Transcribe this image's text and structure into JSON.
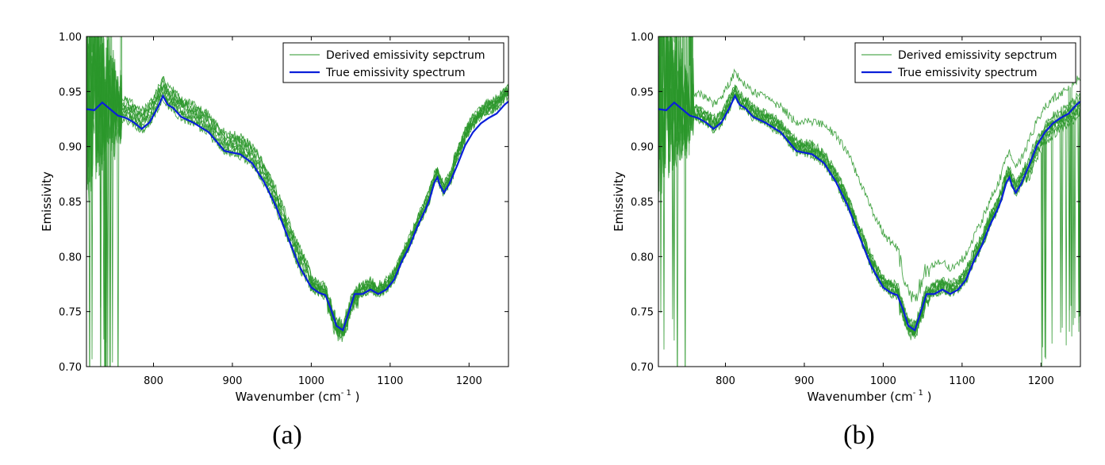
{
  "panels": [
    {
      "sublabel": "(a)"
    },
    {
      "sublabel": "(b)"
    }
  ],
  "chart_data": [
    {
      "type": "line",
      "xlabel": "Wavenumber (cm",
      "xlabel_sup": "- 1",
      "xlabel_suffix": " )",
      "ylabel": "Emissivity",
      "xlim": [
        715,
        1250
      ],
      "ylim": [
        0.7,
        1.0
      ],
      "xticks": [
        800,
        900,
        1000,
        1100,
        1200
      ],
      "yticks": [
        0.7,
        0.75,
        0.8,
        0.85,
        0.9,
        0.95,
        1.0
      ],
      "ytick_labels": [
        "0.70",
        "0.75",
        "0.80",
        "0.85",
        "0.90",
        "0.95",
        "1.00"
      ],
      "grid": false,
      "legend_position": "top-right",
      "series": [
        {
          "name": "Derived emissivity sepctrum",
          "color": "#2a962a",
          "role": "derived",
          "ensemble_count": 10,
          "offset_shape": "tail"
        },
        {
          "name": "True emissivity spectrum",
          "color": "#0a1fd9",
          "role": "true",
          "x": [
            715,
            725,
            735,
            745,
            755,
            765,
            775,
            785,
            795,
            805,
            812,
            818,
            825,
            835,
            850,
            870,
            890,
            910,
            925,
            940,
            955,
            970,
            985,
            1000,
            1010,
            1018,
            1025,
            1032,
            1040,
            1047,
            1055,
            1065,
            1075,
            1085,
            1095,
            1105,
            1115,
            1125,
            1135,
            1145,
            1150,
            1156,
            1160,
            1163,
            1168,
            1175,
            1185,
            1195,
            1205,
            1215,
            1225,
            1235,
            1245,
            1250
          ],
          "y": [
            0.934,
            0.933,
            0.94,
            0.934,
            0.928,
            0.926,
            0.922,
            0.916,
            0.922,
            0.935,
            0.946,
            0.938,
            0.935,
            0.927,
            0.922,
            0.913,
            0.896,
            0.893,
            0.885,
            0.868,
            0.846,
            0.818,
            0.791,
            0.772,
            0.767,
            0.765,
            0.752,
            0.737,
            0.733,
            0.748,
            0.766,
            0.766,
            0.77,
            0.766,
            0.77,
            0.779,
            0.796,
            0.81,
            0.828,
            0.843,
            0.852,
            0.867,
            0.872,
            0.865,
            0.858,
            0.866,
            0.883,
            0.901,
            0.913,
            0.921,
            0.926,
            0.93,
            0.938,
            0.941
          ]
        }
      ]
    },
    {
      "type": "line",
      "xlabel": "Wavenumber (cm",
      "xlabel_sup": "- 1",
      "xlabel_suffix": " )",
      "ylabel": "Emissivity",
      "xlim": [
        715,
        1250
      ],
      "ylim": [
        0.7,
        1.0
      ],
      "xticks": [
        800,
        900,
        1000,
        1100,
        1200
      ],
      "yticks": [
        0.7,
        0.75,
        0.8,
        0.85,
        0.9,
        0.95,
        1.0
      ],
      "ytick_labels": [
        "0.70",
        "0.75",
        "0.80",
        "0.85",
        "0.90",
        "0.95",
        "1.00"
      ],
      "grid": false,
      "legend_position": "top-right",
      "series": [
        {
          "name": "Derived emissivity sepctrum",
          "color": "#2a962a",
          "role": "derived",
          "ensemble_count": 10,
          "offset_shape": "bump"
        },
        {
          "name": "True emissivity spectrum",
          "color": "#0a1fd9",
          "role": "true",
          "x": [
            715,
            725,
            735,
            745,
            755,
            765,
            775,
            785,
            795,
            805,
            812,
            818,
            825,
            835,
            850,
            870,
            890,
            910,
            925,
            940,
            955,
            970,
            985,
            1000,
            1010,
            1018,
            1025,
            1032,
            1040,
            1047,
            1055,
            1065,
            1075,
            1085,
            1095,
            1105,
            1115,
            1125,
            1135,
            1145,
            1150,
            1156,
            1160,
            1163,
            1168,
            1175,
            1185,
            1195,
            1205,
            1215,
            1225,
            1235,
            1245,
            1250
          ],
          "y": [
            0.934,
            0.933,
            0.94,
            0.934,
            0.928,
            0.926,
            0.922,
            0.916,
            0.922,
            0.935,
            0.946,
            0.938,
            0.935,
            0.927,
            0.922,
            0.913,
            0.896,
            0.893,
            0.885,
            0.868,
            0.846,
            0.818,
            0.791,
            0.772,
            0.767,
            0.765,
            0.752,
            0.737,
            0.733,
            0.748,
            0.766,
            0.766,
            0.77,
            0.766,
            0.77,
            0.779,
            0.796,
            0.81,
            0.828,
            0.843,
            0.852,
            0.867,
            0.872,
            0.865,
            0.858,
            0.866,
            0.883,
            0.901,
            0.913,
            0.921,
            0.926,
            0.93,
            0.938,
            0.941
          ]
        }
      ]
    }
  ]
}
